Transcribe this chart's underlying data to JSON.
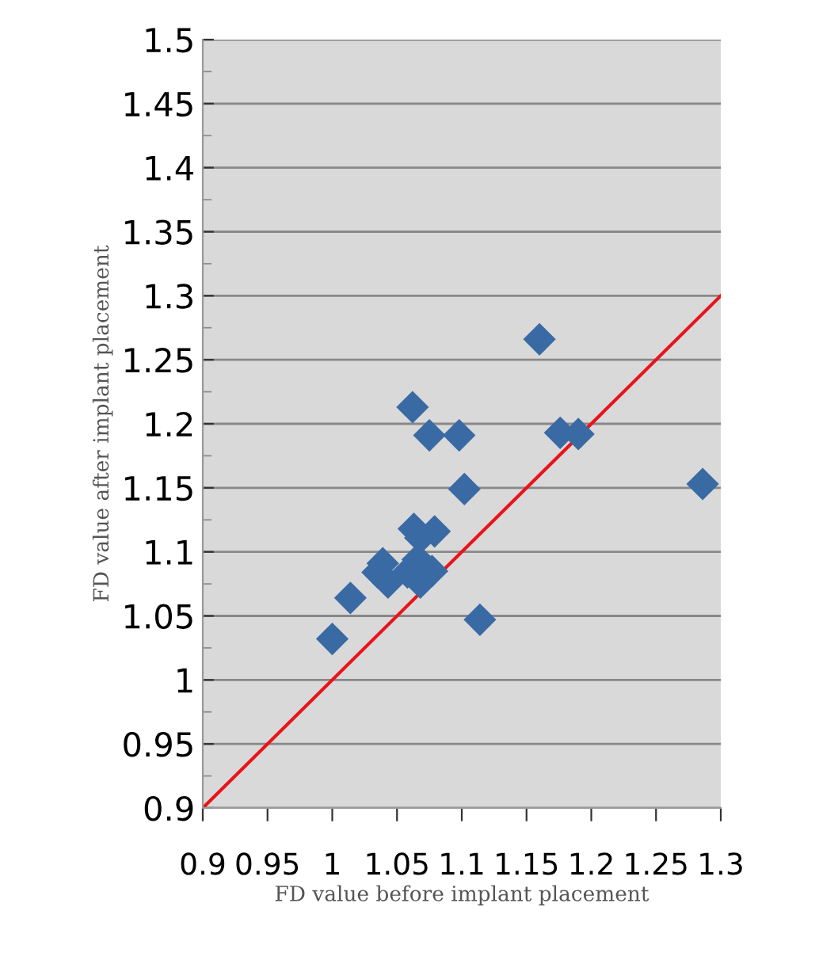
{
  "chart_data": {
    "type": "scatter",
    "xlabel": "FD value before implant placement",
    "ylabel": "FD value after implant placement",
    "xlim": [
      0.9,
      1.3
    ],
    "xticks": [
      {
        "value": 0.9,
        "label": "0.9"
      },
      0.95,
      1,
      1.05,
      1.1,
      1.15,
      1.2,
      1.25,
      1.3
    ],
    "ylim": [
      0.9,
      1.5
    ],
    "yticks": [
      0.9,
      0.95,
      1,
      1.05,
      1.1,
      1.15,
      1.2,
      1.25,
      1.3,
      1.35,
      1.4,
      1.45,
      1.5
    ],
    "grid": "y",
    "legend": false,
    "series": [
      {
        "marker": "diamond",
        "color": "#3a6aa4",
        "x": [
          1.0,
          1.014,
          1.035,
          1.039,
          1.043,
          1.058,
          1.062,
          1.063,
          1.066,
          1.068,
          1.068,
          1.075,
          1.079,
          1.077,
          1.098,
          1.102,
          1.114,
          1.16,
          1.176,
          1.19,
          1.286
        ],
        "values": [
          1.032,
          1.064,
          1.084,
          1.091,
          1.076,
          1.084,
          1.213,
          1.118,
          1.094,
          1.111,
          1.076,
          1.191,
          1.116,
          1.085,
          1.191,
          1.149,
          1.047,
          1.266,
          1.193,
          1.192,
          1.153
        ]
      },
      {
        "type": "line",
        "marker": "none",
        "color": "#e8141c",
        "x": [
          0.9,
          1.3
        ],
        "values": [
          0.9,
          1.3
        ]
      }
    ]
  }
}
